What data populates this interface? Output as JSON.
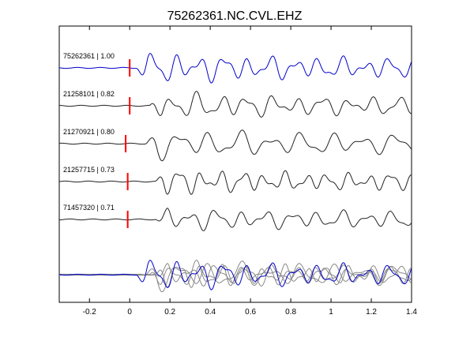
{
  "chart_data": {
    "type": "line",
    "title": "75262361.NC.CVL.EHZ",
    "xlabel": "",
    "ylabel": "",
    "xlim": [
      -0.35,
      1.4
    ],
    "xticks": [
      -0.2,
      0,
      0.2,
      0.4,
      0.6,
      0.8,
      1,
      1.2,
      1.4
    ],
    "xtick_labels": [
      "-0.2",
      "0",
      "0.2",
      "0.4",
      "0.6",
      "0.8",
      "1",
      "1.2",
      "1.4"
    ],
    "grid": false,
    "legend": "none",
    "colors": {
      "reference": "#0000cc",
      "matched": "#222222",
      "overlay_gray": "#888888",
      "pick": "#ff0000"
    },
    "traces": [
      {
        "id": "75262361",
        "cc": "1.00",
        "label": "75262361 | 1.00",
        "pick_time": 0.0,
        "color": "#0000cc",
        "t0": 0.03,
        "f": 8.5,
        "amp": 1.0,
        "seed": 1
      },
      {
        "id": "21258101",
        "cc": "0.82",
        "label": "21258101 | 0.82",
        "pick_time": 0.0,
        "color": "#222222",
        "t0": 0.1,
        "f": 8.0,
        "amp": 0.85,
        "seed": 2
      },
      {
        "id": "21270921",
        "cc": "0.80",
        "label": "21270921 | 0.80",
        "pick_time": -0.02,
        "color": "#222222",
        "t0": 0.08,
        "f": 6.5,
        "amp": 0.95,
        "seed": 3
      },
      {
        "id": "21257715",
        "cc": "0.73",
        "label": "21257715 | 0.73",
        "pick_time": -0.01,
        "color": "#222222",
        "t0": 0.12,
        "f": 9.5,
        "amp": 0.8,
        "seed": 4
      },
      {
        "id": "71457320",
        "cc": "0.71",
        "label": "71457320 | 0.71",
        "pick_time": -0.01,
        "color": "#222222",
        "t0": 0.13,
        "f": 8.0,
        "amp": 0.75,
        "seed": 5
      }
    ]
  }
}
